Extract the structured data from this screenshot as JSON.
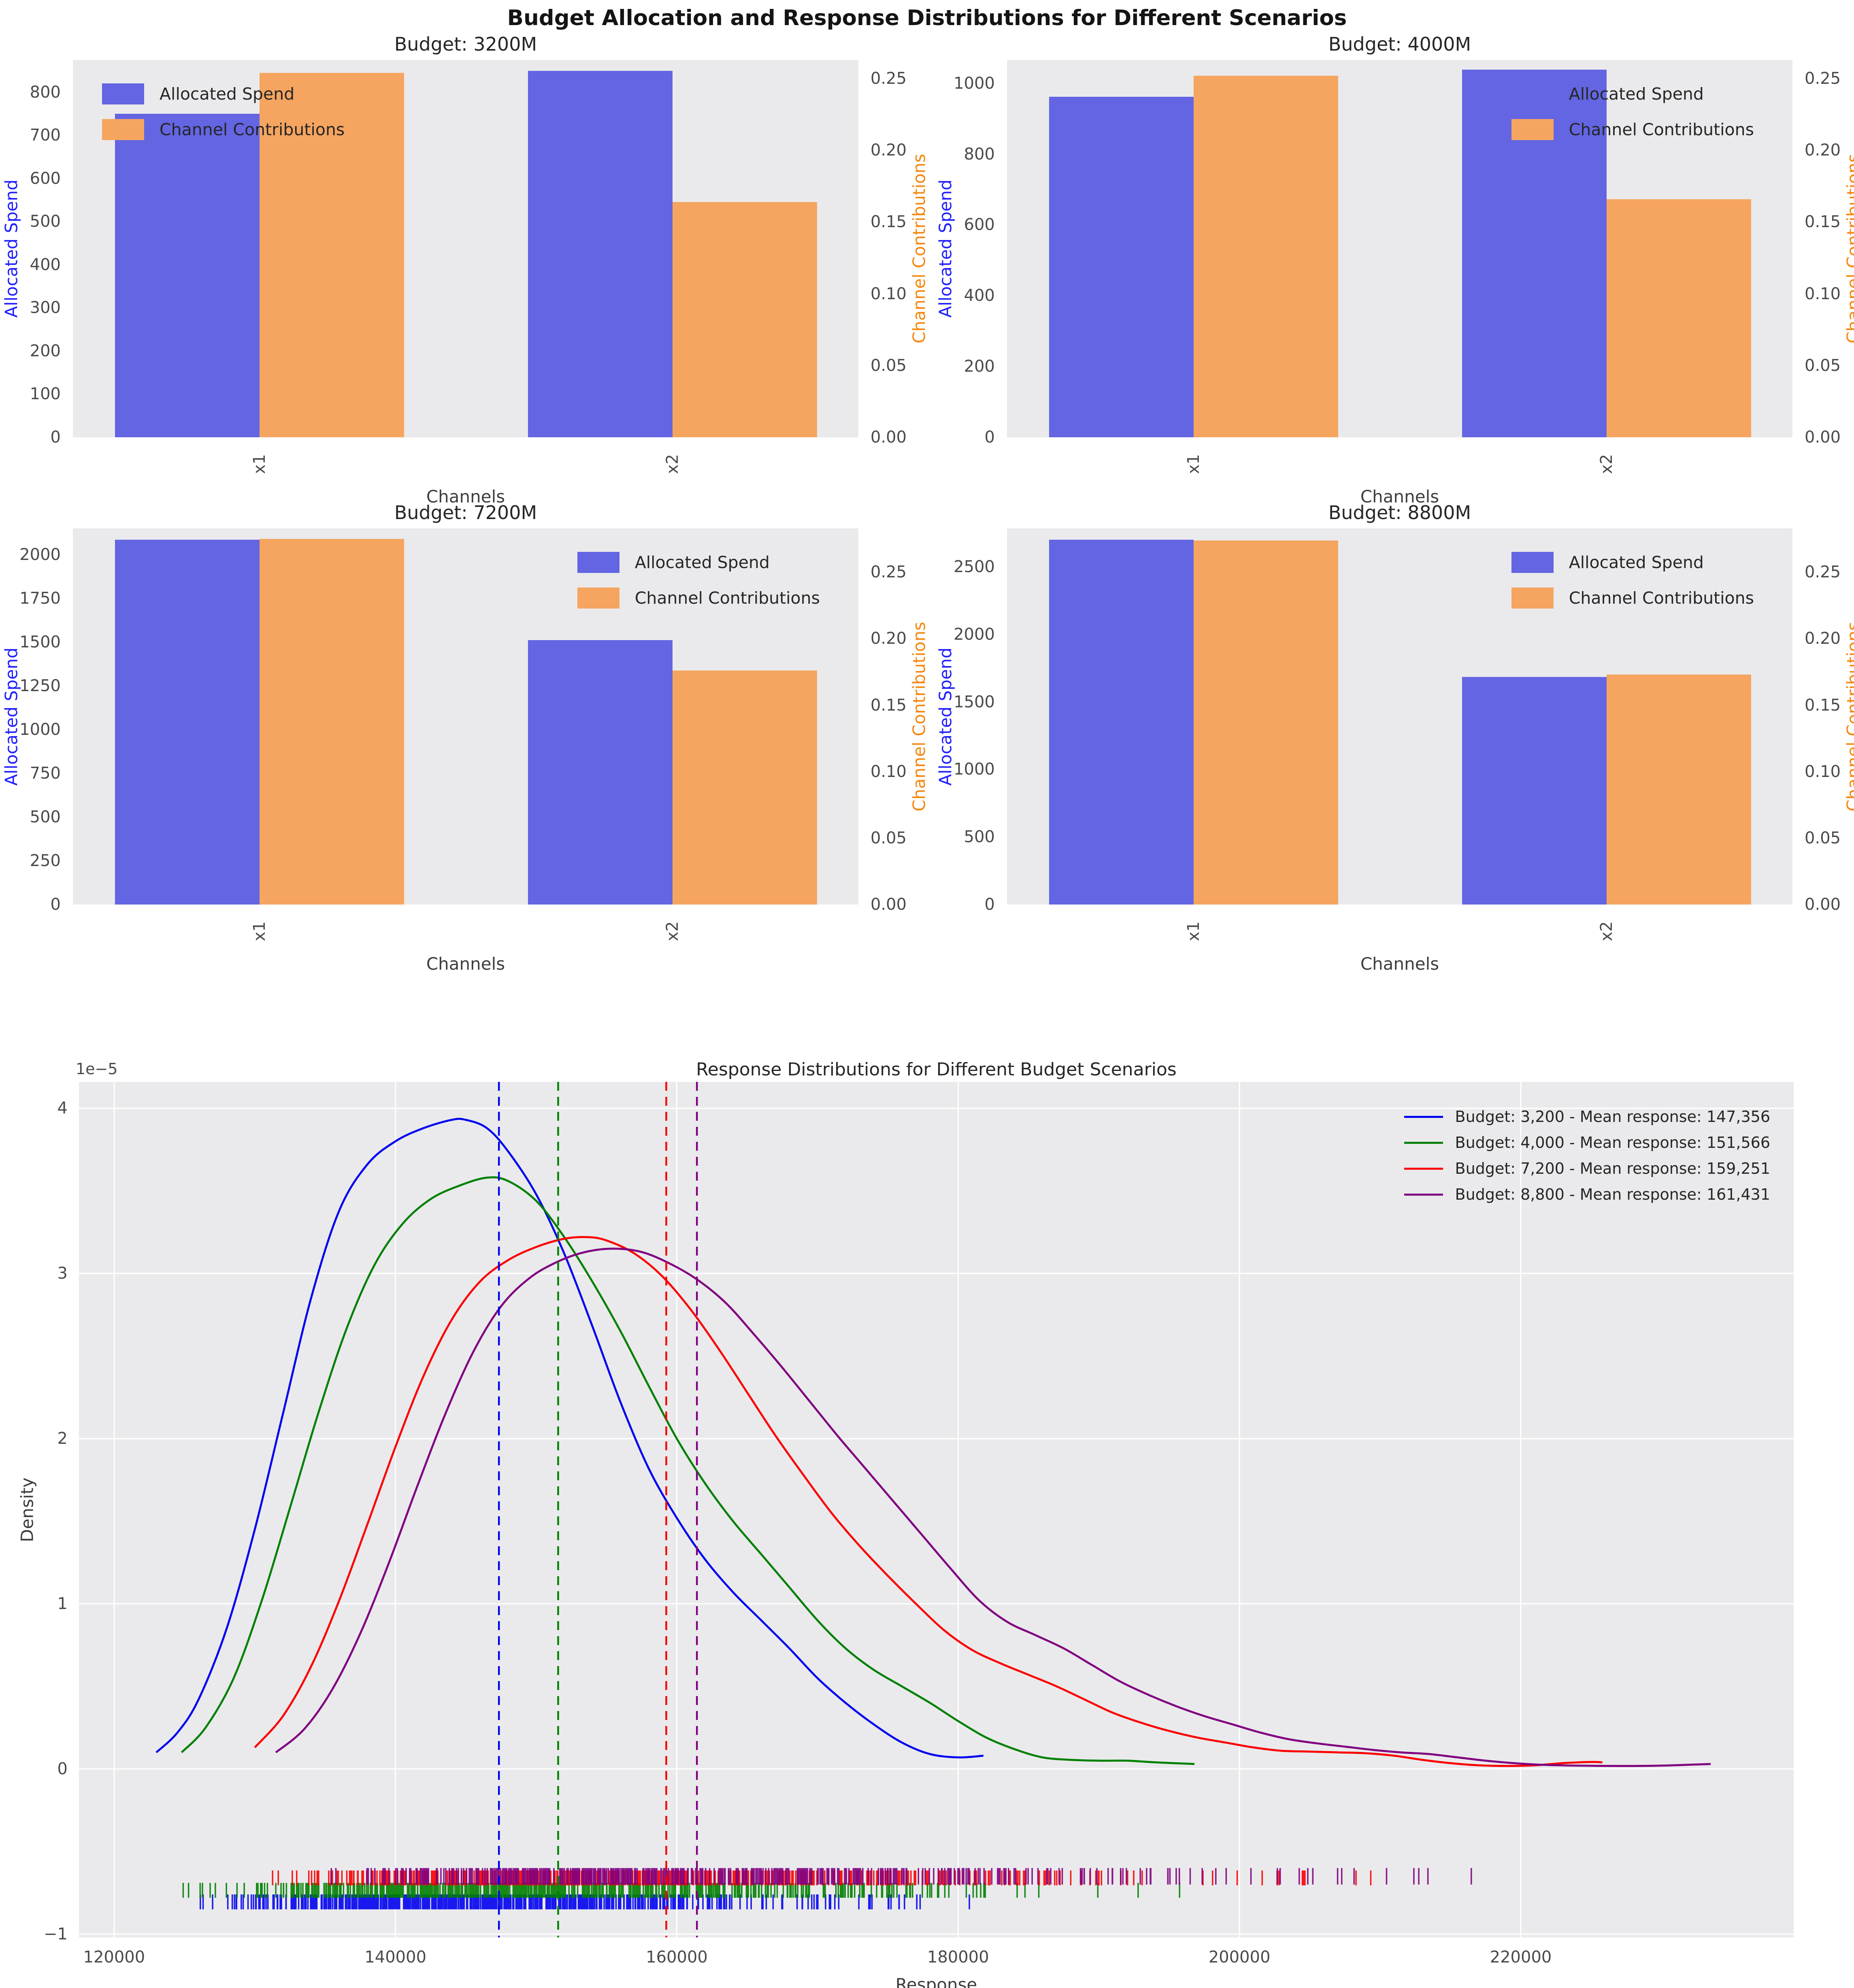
{
  "figure": {
    "main_title": "Budget Allocation and Response Distributions for Different Scenarios",
    "colors": {
      "spend_bar": "#6365e3",
      "contrib_bar": "#f5a55f",
      "spend_label_color": "#2020ff",
      "contrib_label_color": "#f5870f",
      "axes_bg": "#eaeaec",
      "grid": "#ffffff",
      "kde_blue": "#0202f0",
      "kde_green": "#008000",
      "kde_red": "#fb0000",
      "kde_purple": "#800080"
    }
  },
  "axis_labels": {
    "spend": "Allocated Spend",
    "contrib": "Channel Contributions",
    "channels": "Channels",
    "density": "Density",
    "response": "Response",
    "offset": "1e−5"
  },
  "chart_data": [
    {
      "type": "bar",
      "title": "Budget: 3200M",
      "categories": [
        "x1",
        "x2"
      ],
      "series": [
        {
          "name": "Allocated Spend",
          "axis": "left",
          "values": [
            750,
            850
          ]
        },
        {
          "name": "Channel Contributions",
          "axis": "right",
          "values": [
            0.254,
            0.164
          ]
        }
      ],
      "left_axis": {
        "label": "Allocated Spend",
        "ticks": [
          0,
          100,
          200,
          300,
          400,
          500,
          600,
          700,
          800
        ],
        "max": 875
      },
      "right_axis": {
        "label": "Channel Contributions",
        "ticks": [
          0.0,
          0.05,
          0.1,
          0.15,
          0.2,
          0.25
        ],
        "max": 0.263
      },
      "xlabel": "Channels",
      "legend_loc": "upper-left"
    },
    {
      "type": "bar",
      "title": "Budget: 4000M",
      "categories": [
        "x1",
        "x2"
      ],
      "series": [
        {
          "name": "Allocated Spend",
          "axis": "left",
          "values": [
            962,
            1038
          ]
        },
        {
          "name": "Channel Contributions",
          "axis": "right",
          "values": [
            0.252,
            0.166
          ]
        }
      ],
      "left_axis": {
        "label": "Allocated Spend",
        "ticks": [
          0,
          200,
          400,
          600,
          800,
          1000
        ],
        "max": 1066
      },
      "right_axis": {
        "label": "Channel Contributions",
        "ticks": [
          0.0,
          0.05,
          0.1,
          0.15,
          0.2,
          0.25
        ],
        "max": 0.263
      },
      "xlabel": "Channels",
      "legend_loc": "upper-right"
    },
    {
      "type": "bar",
      "title": "Budget: 7200M",
      "categories": [
        "x1",
        "x2"
      ],
      "series": [
        {
          "name": "Allocated Spend",
          "axis": "left",
          "values": [
            2086,
            1512
          ]
        },
        {
          "name": "Channel Contributions",
          "axis": "right",
          "values": [
            0.275,
            0.176
          ]
        }
      ],
      "left_axis": {
        "label": "Allocated Spend",
        "ticks": [
          0,
          250,
          500,
          750,
          1000,
          1250,
          1500,
          1750,
          2000
        ],
        "max": 2150
      },
      "right_axis": {
        "label": "Channel Contributions",
        "ticks": [
          0.0,
          0.05,
          0.1,
          0.15,
          0.2,
          0.25
        ],
        "max": 0.283
      },
      "xlabel": "Channels",
      "legend_loc": "upper-right"
    },
    {
      "type": "bar",
      "title": "Budget: 8800M",
      "categories": [
        "x1",
        "x2"
      ],
      "series": [
        {
          "name": "Allocated Spend",
          "axis": "left",
          "values": [
            2700,
            1684
          ]
        },
        {
          "name": "Channel Contributions",
          "axis": "right",
          "values": [
            0.274,
            0.173
          ]
        }
      ],
      "left_axis": {
        "label": "Allocated Spend",
        "ticks": [
          0,
          500,
          1000,
          1500,
          2000,
          2500
        ],
        "max": 2785
      },
      "right_axis": {
        "label": "Channel Contributions",
        "ticks": [
          0.0,
          0.05,
          0.1,
          0.15,
          0.2,
          0.25
        ],
        "max": 0.283
      },
      "xlabel": "Channels",
      "legend_loc": "upper-right"
    },
    {
      "type": "line",
      "title": "Response Distributions for Different Budget Scenarios",
      "xlabel": "Response",
      "ylabel": "Density",
      "y_offset_label": "1e−5",
      "xlim": [
        117500,
        239400
      ],
      "ylim": [
        -1.02,
        4.16
      ],
      "x_ticks": [
        120000,
        140000,
        160000,
        180000,
        200000,
        220000
      ],
      "x_tick_labels": [
        "120000",
        "140000",
        "160000",
        "180000",
        "200000",
        "220000"
      ],
      "y_ticks": [
        -1,
        0,
        1,
        2,
        3,
        4
      ],
      "y_tick_labels": [
        "−1",
        "0",
        "1",
        "2",
        "3",
        "4"
      ],
      "grid": true,
      "legend_position": "upper right",
      "series": [
        {
          "name": "Budget: 3,200 - Mean response: 147,356",
          "color_key": "kde_blue",
          "mean": 147356,
          "peak": {
            "x": 144500,
            "density": 3.93
          },
          "rug_band": [
            -0.76,
            -0.85
          ],
          "rug_count": 620,
          "rug_seed": 42,
          "points": [
            [
              123000,
              0.1
            ],
            [
              124500,
              0.22
            ],
            [
              126000,
              0.42
            ],
            [
              128000,
              0.85
            ],
            [
              130000,
              1.45
            ],
            [
              132000,
              2.15
            ],
            [
              134000,
              2.85
            ],
            [
              136000,
              3.38
            ],
            [
              138000,
              3.66
            ],
            [
              140000,
              3.8
            ],
            [
              142000,
              3.88
            ],
            [
              144000,
              3.93
            ],
            [
              145000,
              3.93
            ],
            [
              146500,
              3.88
            ],
            [
              148000,
              3.74
            ],
            [
              150000,
              3.48
            ],
            [
              152000,
              3.12
            ],
            [
              154000,
              2.68
            ],
            [
              156000,
              2.22
            ],
            [
              158000,
              1.82
            ],
            [
              160000,
              1.52
            ],
            [
              162000,
              1.27
            ],
            [
              164000,
              1.07
            ],
            [
              166000,
              0.9
            ],
            [
              168000,
              0.73
            ],
            [
              170000,
              0.55
            ],
            [
              172000,
              0.4
            ],
            [
              174000,
              0.27
            ],
            [
              176000,
              0.16
            ],
            [
              178000,
              0.09
            ],
            [
              180000,
              0.07
            ],
            [
              181800,
              0.08
            ]
          ]
        },
        {
          "name": "Budget: 4,000 - Mean response: 151,566",
          "color_key": "kde_green",
          "mean": 151566,
          "peak": {
            "x": 147000,
            "density": 3.58
          },
          "rug_band": [
            -0.69,
            -0.78
          ],
          "rug_count": 620,
          "rug_seed": 77,
          "points": [
            [
              124800,
              0.1
            ],
            [
              126500,
              0.25
            ],
            [
              128500,
              0.55
            ],
            [
              130500,
              1.02
            ],
            [
              132500,
              1.58
            ],
            [
              134500,
              2.15
            ],
            [
              136500,
              2.66
            ],
            [
              138500,
              3.05
            ],
            [
              140500,
              3.3
            ],
            [
              142500,
              3.45
            ],
            [
              144500,
              3.53
            ],
            [
              146500,
              3.58
            ],
            [
              148000,
              3.56
            ],
            [
              150000,
              3.44
            ],
            [
              152000,
              3.22
            ],
            [
              154000,
              2.95
            ],
            [
              156000,
              2.65
            ],
            [
              158000,
              2.32
            ],
            [
              160000,
              2.0
            ],
            [
              162000,
              1.73
            ],
            [
              164000,
              1.5
            ],
            [
              166000,
              1.3
            ],
            [
              168000,
              1.1
            ],
            [
              170000,
              0.9
            ],
            [
              172000,
              0.73
            ],
            [
              174000,
              0.6
            ],
            [
              176000,
              0.5
            ],
            [
              178000,
              0.4
            ],
            [
              180000,
              0.29
            ],
            [
              182000,
              0.19
            ],
            [
              184000,
              0.12
            ],
            [
              186000,
              0.07
            ],
            [
              188000,
              0.055
            ],
            [
              190000,
              0.05
            ],
            [
              192000,
              0.05
            ],
            [
              194000,
              0.04
            ],
            [
              196800,
              0.03
            ]
          ]
        },
        {
          "name": "Budget: 7,200 - Mean response: 159,251",
          "color_key": "kde_red",
          "mean": 159251,
          "peak": {
            "x": 153600,
            "density": 3.22
          },
          "rug_band": [
            -0.615,
            -0.705
          ],
          "rug_count": 520,
          "rug_seed": 123,
          "points": [
            [
              130000,
              0.13
            ],
            [
              132000,
              0.32
            ],
            [
              134000,
              0.62
            ],
            [
              136000,
              1.02
            ],
            [
              138000,
              1.48
            ],
            [
              140000,
              1.95
            ],
            [
              142000,
              2.38
            ],
            [
              144000,
              2.72
            ],
            [
              146000,
              2.95
            ],
            [
              148000,
              3.08
            ],
            [
              150000,
              3.16
            ],
            [
              152000,
              3.21
            ],
            [
              153600,
              3.22
            ],
            [
              155000,
              3.2
            ],
            [
              157000,
              3.12
            ],
            [
              159000,
              2.98
            ],
            [
              161000,
              2.78
            ],
            [
              163000,
              2.54
            ],
            [
              165000,
              2.28
            ],
            [
              167000,
              2.02
            ],
            [
              169000,
              1.78
            ],
            [
              171000,
              1.55
            ],
            [
              173000,
              1.35
            ],
            [
              175000,
              1.17
            ],
            [
              177000,
              1.0
            ],
            [
              179000,
              0.84
            ],
            [
              181000,
              0.72
            ],
            [
              183000,
              0.64
            ],
            [
              185000,
              0.57
            ],
            [
              187000,
              0.5
            ],
            [
              189000,
              0.42
            ],
            [
              191000,
              0.34
            ],
            [
              193000,
              0.28
            ],
            [
              195000,
              0.23
            ],
            [
              197000,
              0.19
            ],
            [
              199000,
              0.16
            ],
            [
              201000,
              0.13
            ],
            [
              203000,
              0.11
            ],
            [
              205000,
              0.105
            ],
            [
              207000,
              0.1
            ],
            [
              209000,
              0.095
            ],
            [
              211000,
              0.08
            ],
            [
              213000,
              0.055
            ],
            [
              215000,
              0.035
            ],
            [
              217000,
              0.022
            ],
            [
              219000,
              0.018
            ],
            [
              221000,
              0.022
            ],
            [
              223000,
              0.035
            ],
            [
              225000,
              0.042
            ],
            [
              225800,
              0.04
            ]
          ]
        },
        {
          "name": "Budget: 8,800 - Mean response: 161,431",
          "color_key": "kde_purple",
          "mean": 161431,
          "peak": {
            "x": 155900,
            "density": 3.15
          },
          "rug_band": [
            -0.6,
            -0.7
          ],
          "rug_count": 520,
          "rug_seed": 999,
          "points": [
            [
              131500,
              0.1
            ],
            [
              133500,
              0.24
            ],
            [
              135500,
              0.48
            ],
            [
              137500,
              0.82
            ],
            [
              139500,
              1.24
            ],
            [
              141500,
              1.7
            ],
            [
              143500,
              2.14
            ],
            [
              145500,
              2.52
            ],
            [
              147500,
              2.8
            ],
            [
              149500,
              2.97
            ],
            [
              151500,
              3.07
            ],
            [
              153500,
              3.13
            ],
            [
              155500,
              3.15
            ],
            [
              157500,
              3.13
            ],
            [
              159500,
              3.06
            ],
            [
              161500,
              2.96
            ],
            [
              163500,
              2.82
            ],
            [
              165500,
              2.63
            ],
            [
              167500,
              2.43
            ],
            [
              169500,
              2.22
            ],
            [
              171500,
              2.01
            ],
            [
              173500,
              1.81
            ],
            [
              175500,
              1.61
            ],
            [
              177500,
              1.41
            ],
            [
              179500,
              1.21
            ],
            [
              181500,
              1.02
            ],
            [
              183500,
              0.89
            ],
            [
              185500,
              0.81
            ],
            [
              187500,
              0.73
            ],
            [
              189500,
              0.63
            ],
            [
              191500,
              0.53
            ],
            [
              193500,
              0.45
            ],
            [
              195500,
              0.38
            ],
            [
              197500,
              0.32
            ],
            [
              199500,
              0.27
            ],
            [
              201500,
              0.22
            ],
            [
              203500,
              0.18
            ],
            [
              205500,
              0.155
            ],
            [
              207500,
              0.135
            ],
            [
              209500,
              0.115
            ],
            [
              211500,
              0.1
            ],
            [
              213500,
              0.09
            ],
            [
              215500,
              0.07
            ],
            [
              217500,
              0.05
            ],
            [
              219500,
              0.035
            ],
            [
              221500,
              0.025
            ],
            [
              224000,
              0.02
            ],
            [
              227000,
              0.018
            ],
            [
              230000,
              0.02
            ],
            [
              233500,
              0.03
            ]
          ]
        }
      ]
    }
  ]
}
